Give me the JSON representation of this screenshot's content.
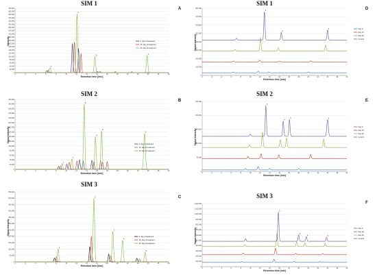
{
  "charts": [
    {
      "id": "A",
      "title": "SIM 1",
      "letter": "A",
      "xlabel": "Retention time [min]",
      "ylabel": "Intensity",
      "xlim": [
        0,
        30
      ],
      "ylim": [
        0,
        400000
      ],
      "yticks": [
        "0",
        "20,000",
        "40,000",
        "60,000",
        "80,000",
        "100,000",
        "120,000",
        "140,000",
        "160,000",
        "180,000",
        "200,000",
        "220,000",
        "240,000",
        "260,000",
        "280,000",
        "300,000",
        "320,000",
        "340,000",
        "360,000",
        "380,000",
        "400,000"
      ],
      "stack": false,
      "legend": [
        "0. day of treatment",
        "15. day of treatment",
        "33. day of treatment"
      ],
      "series": [
        {
          "color": "#2f3b8f",
          "offset": 0,
          "peaks": [
            [
              6.2,
              12000,
              0.12
            ],
            [
              11.2,
              180000,
              0.12
            ],
            [
              12.4,
              150000,
              0.1
            ],
            [
              16.1,
              6000,
              0.1
            ]
          ]
        },
        {
          "color": "#d93a2b",
          "offset": 0,
          "peaks": [
            [
              6.5,
              15000,
              0.12
            ],
            [
              11.6,
              190000,
              0.12
            ],
            [
              12.9,
              120000,
              0.1
            ],
            [
              16.6,
              8000,
              0.1
            ],
            [
              19.6,
              7000,
              0.1
            ],
            [
              22.8,
              6000,
              0.1
            ]
          ]
        },
        {
          "color": "#7dbf3a",
          "offset": 0,
          "peaks": [
            [
              6.8,
              30000,
              0.15
            ],
            [
              12.1,
              365000,
              0.13
            ],
            [
              15.6,
              100000,
              0.14
            ],
            [
              25.8,
              105000,
              0.14
            ]
          ]
        }
      ],
      "peak_labels": [
        [
          6.8,
          "1"
        ],
        [
          12.1,
          "2"
        ],
        [
          15.6,
          "3"
        ],
        [
          25.8,
          "4"
        ]
      ]
    },
    {
      "id": "B",
      "title": "SIM 2",
      "letter": "B",
      "xlabel": "Retention time [min]",
      "ylabel": "Signal Intensity",
      "xlim": [
        0,
        30
      ],
      "ylim": [
        0,
        300000
      ],
      "yticks": [
        "0",
        "20,000",
        "40,000",
        "60,000",
        "80,000",
        "100,000",
        "120,000",
        "140,000",
        "160,000",
        "180,000",
        "200,000",
        "220,000",
        "240,000",
        "260,000",
        "280,000",
        "300,000"
      ],
      "stack": false,
      "legend": [
        "0. day of treatment",
        "15. day of treatment",
        "33. day of treatment"
      ],
      "series": [
        {
          "color": "#2f3b8f",
          "offset": 0,
          "peaks": [
            [
              8.5,
              12000,
              0.12
            ],
            [
              10.1,
              22000,
              0.12
            ],
            [
              12.6,
              40000,
              0.12
            ],
            [
              13.3,
              35000,
              0.12
            ],
            [
              15.0,
              38000,
              0.12
            ],
            [
              17.1,
              30000,
              0.12
            ]
          ]
        },
        {
          "color": "#d93a2b",
          "offset": 0,
          "peaks": [
            [
              8.9,
              15000,
              0.12
            ],
            [
              10.6,
              30000,
              0.12
            ],
            [
              12.1,
              35000,
              0.12
            ],
            [
              15.4,
              32000,
              0.12
            ],
            [
              16.7,
              36000,
              0.12
            ],
            [
              18.0,
              32000,
              0.12
            ]
          ]
        },
        {
          "color": "#7dbf3a",
          "offset": 0,
          "peaks": [
            [
              9.2,
              25000,
              0.12
            ],
            [
              11.1,
              45000,
              0.13
            ],
            [
              13.5,
              280000,
              0.13
            ],
            [
              15.7,
              140000,
              0.14
            ],
            [
              16.9,
              165000,
              0.14
            ],
            [
              25.3,
              155000,
              0.16
            ]
          ]
        }
      ],
      "peak_labels": [
        [
          9.2,
          "1"
        ],
        [
          11.1,
          "2"
        ],
        [
          13.5,
          "3"
        ],
        [
          15.7,
          "4"
        ],
        [
          16.9,
          "5"
        ],
        [
          25.3,
          "6"
        ]
      ]
    },
    {
      "id": "C",
      "title": "SIM 3",
      "letter": "C",
      "xlabel": "Retention time [min]",
      "ylabel": "Signal Intensity",
      "xlim": [
        0,
        30
      ],
      "ylim": [
        0,
        550000
      ],
      "yticks": [
        "0",
        "50,000",
        "100,000",
        "150,000",
        "200,000",
        "250,000",
        "300,000",
        "350,000",
        "400,000",
        "450,000",
        "500,000",
        "550,000"
      ],
      "stack": false,
      "legend": [
        "0. day of treatment",
        "15. day of treatment",
        "33. day of treatment"
      ],
      "series": [
        {
          "color": "#111111",
          "offset": 0,
          "peaks": [
            [
              7.7,
              30000,
              0.12
            ],
            [
              14.6,
              120000,
              0.12
            ],
            [
              18.3,
              60000,
              0.12
            ],
            [
              23.8,
              28000,
              0.12
            ]
          ]
        },
        {
          "color": "#d93a2b",
          "offset": 0,
          "peaks": [
            [
              8.1,
              40000,
              0.12
            ],
            [
              14.9,
              200000,
              0.12
            ],
            [
              18.7,
              45000,
              0.12
            ],
            [
              24.3,
              22000,
              0.12
            ]
          ]
        },
        {
          "color": "#7dbf3a",
          "offset": 0,
          "peaks": [
            [
              8.4,
              100000,
              0.14
            ],
            [
              15.4,
              500000,
              0.14
            ],
            [
              19.1,
              240000,
              0.14
            ],
            [
              21.0,
              170000,
              0.14
            ],
            [
              25.4,
              75000,
              0.14
            ]
          ]
        }
      ],
      "peak_labels": [
        [
          8.4,
          "1"
        ],
        [
          15.4,
          "2"
        ],
        [
          19.1,
          "3"
        ],
        [
          21.0,
          "4"
        ],
        [
          25.4,
          "5"
        ]
      ]
    },
    {
      "id": "D",
      "title": "SIM 1",
      "letter": "D",
      "xlabel": "Retention time [min]",
      "ylabel": "Signal Intensity",
      "xlim": [
        0,
        30
      ],
      "ylim": [
        0,
        800000
      ],
      "yticks": [
        "0",
        "100,000",
        "200,000",
        "300,000",
        "400,000",
        "500,000",
        "600,000",
        "700,000",
        "800,000"
      ],
      "stack": true,
      "legend": [
        "Day 0",
        "Day 15",
        "Day 33",
        "Control"
      ],
      "series": [
        {
          "color": "#3a78c2",
          "offset": 30000,
          "peaks": [
            [
              6.4,
              8000,
              0.12
            ],
            [
              11.6,
              20000,
              0.12
            ],
            [
              13.8,
              10000,
              0.12
            ],
            [
              22.0,
              10000,
              0.12
            ]
          ]
        },
        {
          "color": "#d93a2b",
          "offset": 160000,
          "peaks": [
            [
              6.5,
              10000,
              0.12
            ],
            [
              11.9,
              20000,
              0.12
            ],
            [
              16.0,
              10000,
              0.12
            ],
            [
              22.5,
              12000,
              0.12
            ]
          ]
        },
        {
          "color": "#7dbf3a",
          "offset": 290000,
          "peaks": [
            [
              6.8,
              20000,
              0.12
            ],
            [
              12.1,
              160000,
              0.12
            ],
            [
              15.8,
              40000,
              0.12
            ],
            [
              25.6,
              70000,
              0.12
            ]
          ]
        },
        {
          "color": "#7a4fa0",
          "offset": 420000,
          "peaks": [
            [
              7.1,
              20000,
              0.12
            ],
            [
              12.9,
              340000,
              0.12
            ],
            [
              16.4,
              90000,
              0.12
            ],
            [
              26.0,
              120000,
              0.12
            ]
          ]
        }
      ],
      "peak_labels": [
        [
          12.9,
          "2"
        ],
        [
          16.4,
          "4"
        ],
        [
          26.0,
          "4"
        ]
      ]
    },
    {
      "id": "E",
      "title": "SIM 2",
      "letter": "E",
      "xlabel": "Retention time [min]",
      "ylabel": "Signal Intensity",
      "xlim": [
        0,
        30
      ],
      "ylim": [
        0,
        250000
      ],
      "yticks": [
        "0",
        "50,000",
        "100,000",
        "150,000",
        "200,000",
        "250,000"
      ],
      "stack": true,
      "legend": [
        "Day 0",
        "Day 15",
        "Day 33",
        "Control"
      ],
      "series": [
        {
          "color": "#3a78c2",
          "offset": 5000,
          "peaks": [
            [
              9.0,
              5000,
              0.12
            ],
            [
              11.6,
              12000,
              0.12
            ],
            [
              14.0,
              6000,
              0.12
            ],
            [
              20.0,
              5000,
              0.12
            ]
          ]
        },
        {
          "color": "#d93a2b",
          "offset": 45000,
          "peaks": [
            [
              9.5,
              8000,
              0.12
            ],
            [
              12.2,
              18000,
              0.12
            ],
            [
              15.9,
              14000,
              0.12
            ],
            [
              22.5,
              15000,
              0.12
            ]
          ]
        },
        {
          "color": "#7dbf3a",
          "offset": 85000,
          "peaks": [
            [
              9.8,
              10000,
              0.12
            ],
            [
              12.5,
              55000,
              0.12
            ],
            [
              16.2,
              28000,
              0.12
            ],
            [
              17.5,
              34000,
              0.12
            ],
            [
              25.2,
              30000,
              0.12
            ]
          ]
        },
        {
          "color": "#7a4fa0",
          "offset": 125000,
          "peaks": [
            [
              10.0,
              8000,
              0.12
            ],
            [
              13.2,
              110000,
              0.12
            ],
            [
              16.8,
              55000,
              0.12
            ],
            [
              18.1,
              60000,
              0.12
            ],
            [
              26.0,
              60000,
              0.16
            ]
          ]
        }
      ],
      "peak_labels": [
        [
          13.2,
          "3"
        ],
        [
          16.8,
          "4"
        ],
        [
          18.1,
          "5"
        ],
        [
          26.0,
          "6"
        ]
      ]
    },
    {
      "id": "F",
      "title": "SIM 3",
      "letter": "F",
      "xlabel": "Retention time [min]",
      "ylabel": "Signal Intensity",
      "xlim": [
        0,
        30
      ],
      "ylim": [
        0,
        1200000
      ],
      "yticks": [
        "0",
        "100,000",
        "200,000",
        "300,000",
        "400,000",
        "500,000",
        "600,000",
        "700,000",
        "800,000",
        "900,000",
        "1,000,000",
        "1,100,000",
        "1,200,000"
      ],
      "stack": true,
      "legend": [
        "Day 0",
        "Day 15",
        "Day 33",
        "Control"
      ],
      "series": [
        {
          "color": "#3a78c2",
          "offset": 80000,
          "peaks": [
            [
              8.2,
              15000,
              0.12
            ],
            [
              14.9,
              60000,
              0.12
            ],
            [
              19.0,
              20000,
              0.12
            ],
            [
              24.4,
              15000,
              0.12
            ]
          ]
        },
        {
          "color": "#d93a2b",
          "offset": 230000,
          "peaks": [
            [
              8.5,
              25000,
              0.12
            ],
            [
              15.2,
              120000,
              0.12
            ],
            [
              19.4,
              20000,
              0.12
            ],
            [
              25.0,
              18000,
              0.12
            ]
          ]
        },
        {
          "color": "#7dbf3a",
          "offset": 380000,
          "peaks": [
            [
              8.8,
              40000,
              0.12
            ],
            [
              15.5,
              250000,
              0.12
            ],
            [
              19.6,
              90000,
              0.12
            ],
            [
              21.3,
              70000,
              0.12
            ],
            [
              25.5,
              60000,
              0.12
            ]
          ]
        },
        {
          "color": "#7a4fa0",
          "offset": 480000,
          "peaks": [
            [
              9.0,
              50000,
              0.12
            ],
            [
              15.8,
              560000,
              0.12
            ],
            [
              20.0,
              120000,
              0.12
            ],
            [
              21.6,
              90000,
              0.12
            ],
            [
              25.8,
              80000,
              0.12
            ]
          ]
        }
      ],
      "peak_labels": [
        [
          15.8,
          "2"
        ],
        [
          20.0,
          "3"
        ],
        [
          21.6,
          "4"
        ],
        [
          25.8,
          "5"
        ]
      ]
    }
  ]
}
